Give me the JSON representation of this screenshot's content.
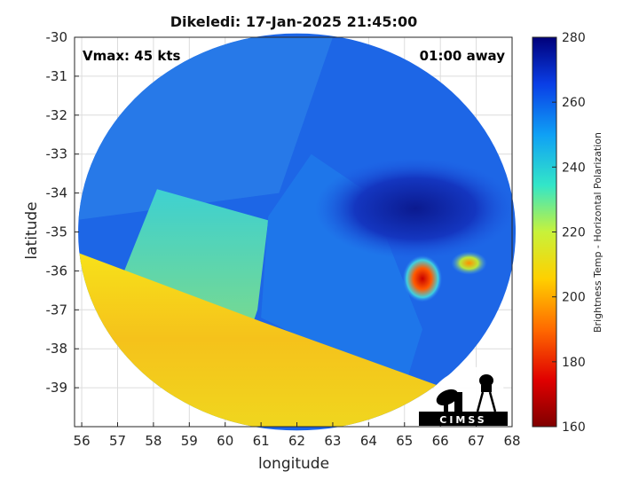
{
  "chart_data": {
    "type": "heatmap",
    "title": "Dikeledi: 17-Jan-2025 21:45:00",
    "xlabel": "longitude",
    "ylabel": "latitude",
    "xlim": [
      55.8,
      68
    ],
    "ylim": [
      -40,
      -30
    ],
    "x_ticks": [
      "56",
      "57",
      "58",
      "59",
      "60",
      "61",
      "62",
      "63",
      "64",
      "65",
      "66",
      "67",
      "68"
    ],
    "y_ticks": [
      "-30",
      "-31",
      "-32",
      "-33",
      "-34",
      "-35",
      "-36",
      "-37",
      "-38",
      "-39"
    ],
    "grid": true,
    "annotations": {
      "vmax": "Vmax: 45 kts",
      "time_offset": "01:00 away"
    },
    "colorbar": {
      "label": "Brightness Temp - Horizontal Polarization",
      "range": [
        160,
        280
      ],
      "ticks": [
        "280",
        "260",
        "240",
        "220",
        "200",
        "180",
        "160"
      ]
    },
    "logo_text": "CIMSS",
    "swath": {
      "center": [
        62,
        -35
      ],
      "radius_deg_lon": 6.1,
      "radius_lat": 5.1,
      "background_value": 258
    },
    "features": [
      {
        "name": "southern warm band",
        "value": 205
      },
      {
        "name": "mid swath band",
        "value": 232
      },
      {
        "name": "cold core northeast",
        "value": 270
      },
      {
        "name": "warm convective spot",
        "value": 180
      }
    ]
  }
}
